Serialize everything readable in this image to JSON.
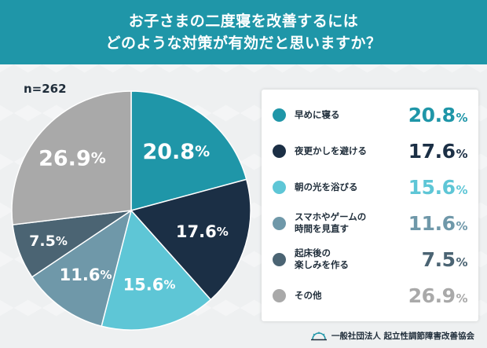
{
  "header": {
    "line1": "お子さまの二度寝を改善するには",
    "line2": "どのような対策が有効だと思いますか？"
  },
  "sample": "n=262",
  "footer": {
    "org": "一般社団法人 起立性調節障害改善協会"
  },
  "chart_data": {
    "type": "pie",
    "start": "12 o'clock",
    "direction": "clockwise",
    "slices": [
      {
        "label": "早めに寝る",
        "value": 20.8,
        "color": "#1f96a8"
      },
      {
        "label": "夜更かしを避ける",
        "value": 17.6,
        "color": "#1b2f45"
      },
      {
        "label": "朝の光を浴びる",
        "value": 15.6,
        "color": "#5ec6d6"
      },
      {
        "label": "スマホやゲームの\n時間を見直す",
        "value": 11.6,
        "color": "#6f98a9"
      },
      {
        "label": "起床後の\n楽しみを作る",
        "value": 7.5,
        "color": "#4b6473"
      },
      {
        "label": "その他",
        "value": 26.9,
        "color": "#a9a9a9"
      }
    ],
    "unit": "%"
  }
}
